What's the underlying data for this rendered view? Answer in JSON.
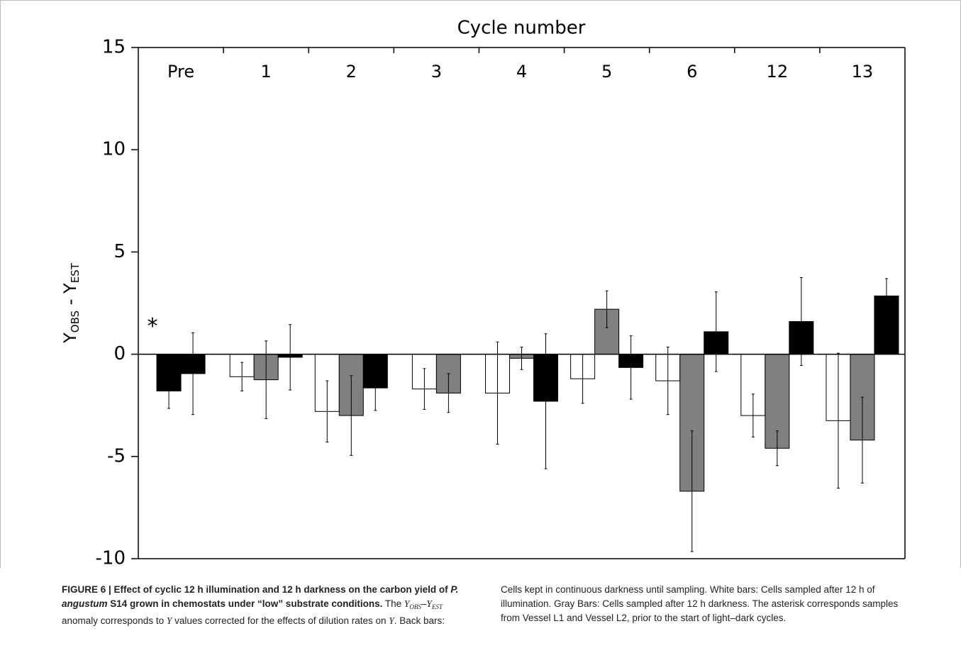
{
  "chart_data": {
    "type": "bar",
    "title": "Cycle number",
    "y_label": [
      "Y",
      "OBS",
      " - Y",
      "EST"
    ],
    "categories": [
      "Pre",
      "1",
      "2",
      "3",
      "4",
      "5",
      "6",
      "12",
      "13"
    ],
    "series": [
      {
        "color": "#ffffff",
        "values": [
          null,
          -1.1,
          -2.8,
          -1.7,
          -1.9,
          -1.2,
          -1.3,
          -3.0,
          -3.25
        ],
        "errors": [
          null,
          0.7,
          1.5,
          1.0,
          2.5,
          1.2,
          1.65,
          1.05,
          3.3
        ]
      },
      {
        "color": "#808080",
        "values": [
          null,
          -1.25,
          -3.0,
          -1.9,
          -0.2,
          2.2,
          -6.7,
          -4.6,
          -4.2
        ],
        "errors": [
          null,
          1.9,
          1.95,
          0.95,
          0.55,
          0.9,
          2.95,
          0.85,
          2.1
        ]
      },
      {
        "color": "#000000",
        "values": [
          -1.8,
          -0.15,
          -1.65,
          null,
          -2.3,
          -0.65,
          1.1,
          1.6,
          2.85
        ],
        "errors": [
          0.85,
          1.6,
          1.1,
          null,
          3.3,
          1.55,
          1.95,
          2.15,
          0.85
        ]
      },
      {
        "color": "#000000",
        "values": [
          -0.95,
          null,
          null,
          null,
          null,
          null,
          null,
          null,
          null
        ],
        "errors": [
          2.0,
          null,
          null,
          null,
          null,
          null,
          null,
          null,
          null
        ]
      }
    ],
    "annotation": "*",
    "ylim": [
      -10,
      15
    ],
    "yticks": [
      -10,
      -5,
      0,
      5,
      10,
      15
    ]
  },
  "caption": [
    {
      "text": "FIGURE 6 | Effect of cyclic 12 h illumination and 12 h darkness on the carbon yield of ",
      "style": "b"
    },
    {
      "text": "P. angustum",
      "style": "bi"
    },
    {
      "text": " S14 grown in chemostats under “low” substrate conditions.",
      "style": "b"
    },
    {
      "text": " The ",
      "style": ""
    },
    {
      "text": "Y",
      "style": "i"
    },
    {
      "text": "OBS",
      "style": "isub"
    },
    {
      "text": "–",
      "style": ""
    },
    {
      "text": "Y",
      "style": "i"
    },
    {
      "text": "EST",
      "style": "isub"
    },
    {
      "text": " anomaly corresponds to ",
      "style": ""
    },
    {
      "text": "Y",
      "style": "i"
    },
    {
      "text": " values corrected for the effects of dilution rates on ",
      "style": ""
    },
    {
      "text": "Y",
      "style": "i"
    },
    {
      "text": ". Back bars: Cells kept in continuous darkness until sampling. White bars: Cells sampled after 12 h of illumination. Gray Bars: Cells sampled after 12 h darkness. The asterisk corresponds samples from Vessel L1 and Vessel L2, prior to the start of light–dark cycles.",
      "style": ""
    }
  ]
}
